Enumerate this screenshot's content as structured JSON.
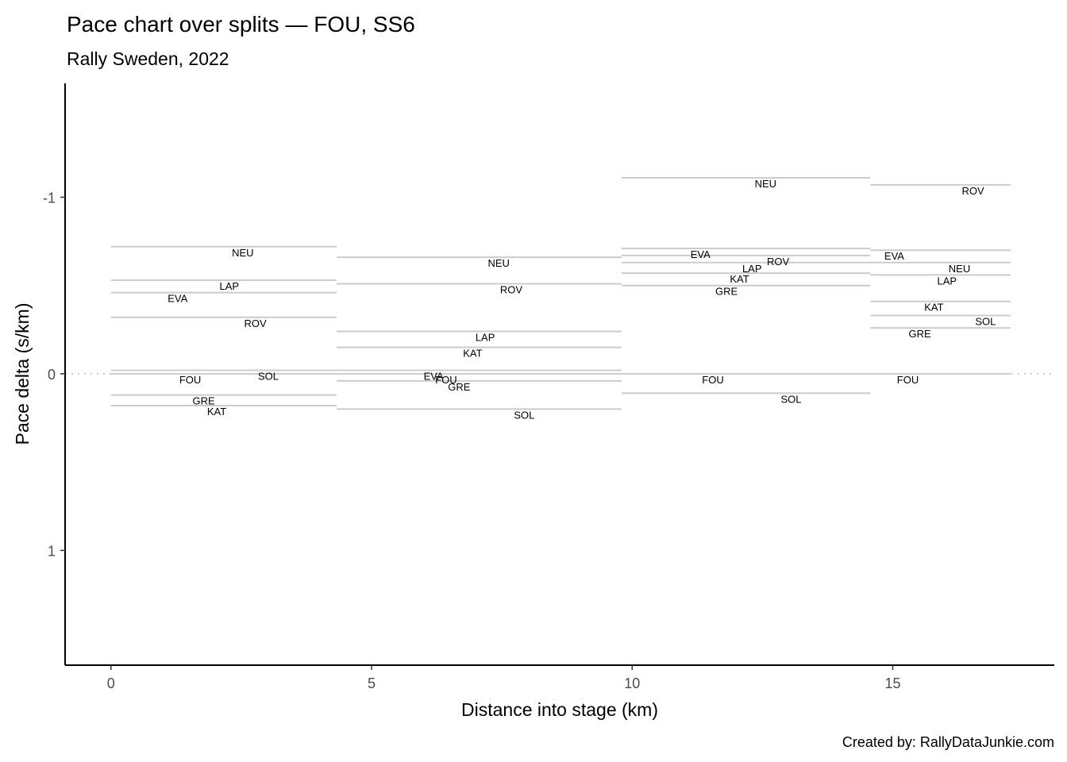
{
  "chart_data": {
    "type": "line",
    "title": "Pace chart over splits — FOU, SS6",
    "subtitle": "Rally Sweden, 2022",
    "xlabel": "Distance into stage (km)",
    "ylabel": "Pace delta (s/km)",
    "caption": "Created by: RallyDataJunkie.com",
    "xlim": [
      -0.88,
      18.1
    ],
    "ylim": [
      -1.645,
      1.65
    ],
    "y_reversed": true,
    "x_ticks": [
      0,
      5,
      10,
      15
    ],
    "x_tick_labels": [
      "0",
      "5",
      "10",
      "15"
    ],
    "y_ticks": [
      -1,
      0,
      1
    ],
    "y_tick_labels": [
      "-1",
      "0",
      "1"
    ],
    "reference_line": 0,
    "grid": false,
    "splits": [
      {
        "start": 0,
        "end": 4.33,
        "drivers": [
          {
            "name": "NEU",
            "pace": -0.72,
            "label_x": 2.53
          },
          {
            "name": "LAP",
            "pace": -0.53,
            "label_x": 2.27
          },
          {
            "name": "EVA",
            "pace": -0.46,
            "label_x": 1.28
          },
          {
            "name": "ROV",
            "pace": -0.32,
            "label_x": 2.77
          },
          {
            "name": "SOL",
            "pace": -0.02,
            "label_x": 3.02
          },
          {
            "name": "FOU",
            "pace": 0,
            "label_x": 1.52
          },
          {
            "name": "GRE",
            "pace": 0.12,
            "label_x": 1.78
          },
          {
            "name": "KAT",
            "pace": 0.18,
            "label_x": 2.03
          }
        ]
      },
      {
        "start": 4.33,
        "end": 9.8,
        "drivers": [
          {
            "name": "NEU",
            "pace": -0.66,
            "label_x": 7.44
          },
          {
            "name": "ROV",
            "pace": -0.51,
            "label_x": 7.68
          },
          {
            "name": "LAP",
            "pace": -0.24,
            "label_x": 7.18
          },
          {
            "name": "KAT",
            "pace": -0.15,
            "label_x": 6.94
          },
          {
            "name": "EVA",
            "pace": -0.02,
            "label_x": 6.19
          },
          {
            "name": "FOU",
            "pace": 0,
            "label_x": 6.43
          },
          {
            "name": "GRE",
            "pace": 0.04,
            "label_x": 6.68
          },
          {
            "name": "SOL",
            "pace": 0.2,
            "label_x": 7.93
          }
        ]
      },
      {
        "start": 9.8,
        "end": 14.57,
        "drivers": [
          {
            "name": "NEU",
            "pace": -1.11,
            "label_x": 12.56
          },
          {
            "name": "EVA",
            "pace": -0.71,
            "label_x": 11.31
          },
          {
            "name": "ROV",
            "pace": -0.67,
            "label_x": 12.8
          },
          {
            "name": "LAP",
            "pace": -0.63,
            "label_x": 12.3
          },
          {
            "name": "KAT",
            "pace": -0.57,
            "label_x": 12.06
          },
          {
            "name": "GRE",
            "pace": -0.5,
            "label_x": 11.81
          },
          {
            "name": "FOU",
            "pace": 0,
            "label_x": 11.55
          },
          {
            "name": "SOL",
            "pace": 0.11,
            "label_x": 13.05
          }
        ]
      },
      {
        "start": 14.57,
        "end": 17.26,
        "drivers": [
          {
            "name": "ROV",
            "pace": -1.07,
            "label_x": 16.54
          },
          {
            "name": "EVA",
            "pace": -0.7,
            "label_x": 15.03
          },
          {
            "name": "NEU",
            "pace": -0.63,
            "label_x": 16.28
          },
          {
            "name": "LAP",
            "pace": -0.56,
            "label_x": 16.04
          },
          {
            "name": "KAT",
            "pace": -0.41,
            "label_x": 15.79
          },
          {
            "name": "SOL",
            "pace": -0.33,
            "label_x": 16.78
          },
          {
            "name": "GRE",
            "pace": -0.26,
            "label_x": 15.52
          },
          {
            "name": "FOU",
            "pace": 0,
            "label_x": 15.29
          }
        ]
      }
    ],
    "colors": {
      "segment": "#cccccc",
      "reference": "#cccccc",
      "axis": "#000000"
    }
  }
}
